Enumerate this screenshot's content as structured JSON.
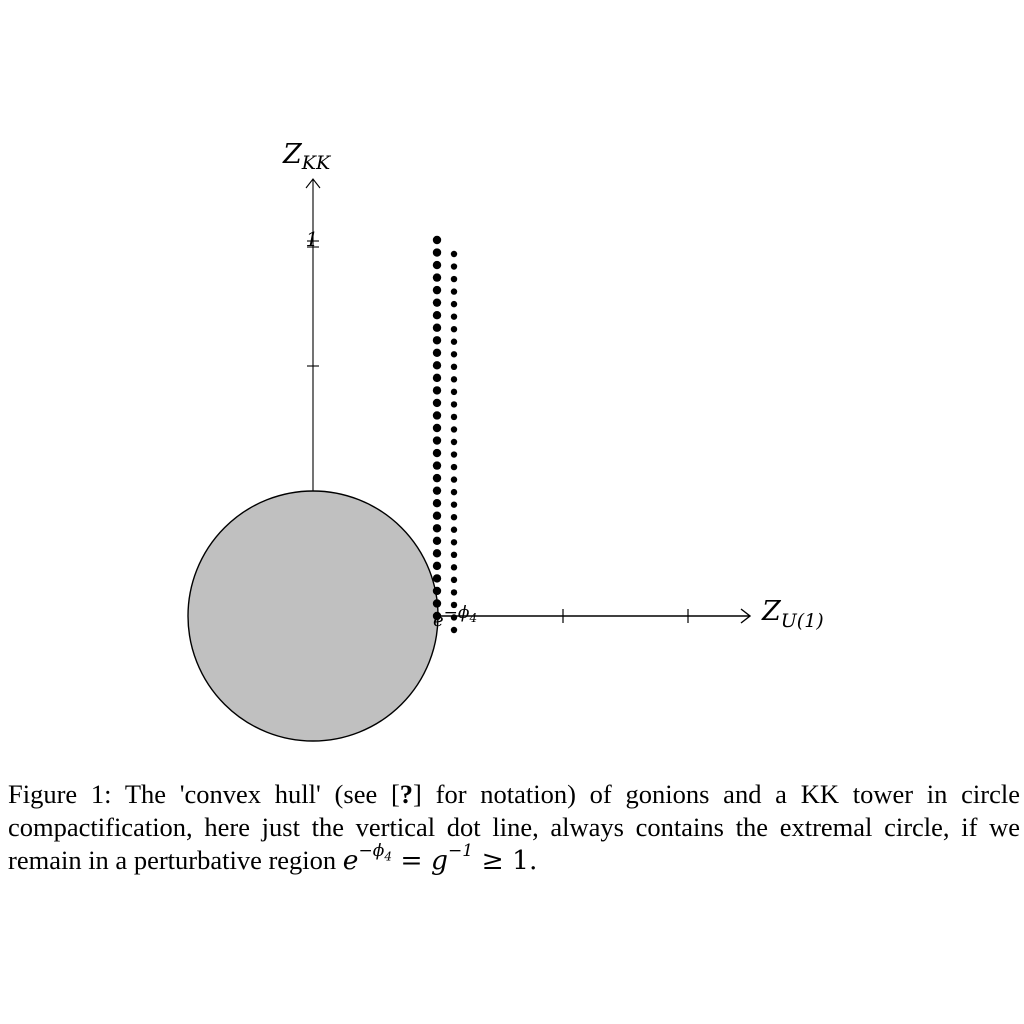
{
  "figure": {
    "y_axis_label": {
      "base": "Z",
      "sub": "KK"
    },
    "x_axis_label": {
      "base": "Z",
      "sub": "U(1)"
    },
    "y_tick_label": "1",
    "origin_label": {
      "base": "e",
      "sup": "−ϕ",
      "sub": "4"
    },
    "colors": {
      "axis": "#000000",
      "circle_fill": "#c0c0c0",
      "circle_stroke": "#000000",
      "dots": "#000000"
    },
    "dot_columns": [
      {
        "count": 31,
        "size": "large"
      },
      {
        "count": 31,
        "size": "small"
      }
    ],
    "x_tick_count": 2,
    "y_tick_count": 2
  },
  "caption": {
    "prefix": "Figure 1:",
    "text_1": " The 'convex hull' (see [",
    "cite": "?",
    "text_2": "] for notation) of gonions and a KK tower in circle compactification, here just the vertical dot line, always contains the extremal circle, if we remain in a perturbative region ",
    "math_e": "e",
    "math_e_sup": "−ϕ",
    "math_e_sup_sub": "4",
    "math_eq": " = g",
    "math_g_sup": "−1",
    "math_tail": " ≥ 1."
  }
}
